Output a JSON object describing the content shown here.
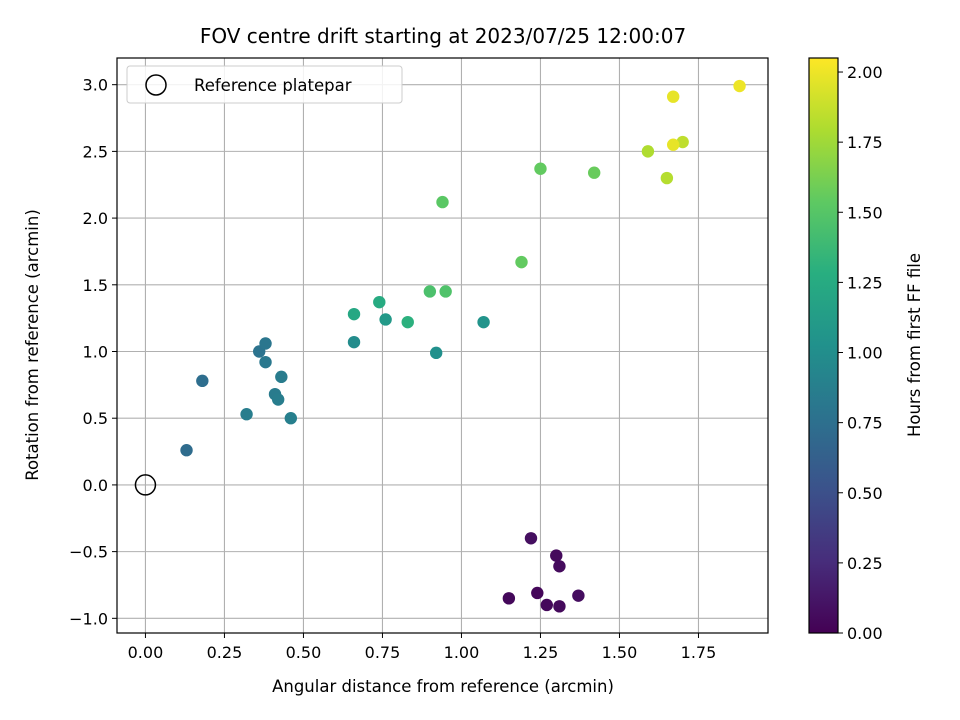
{
  "chart_data": {
    "type": "scatter",
    "title": "FOV centre drift starting at 2023/07/25 12:00:07",
    "xlabel": "Angular distance from reference (arcmin)",
    "ylabel": "Rotation from reference (arcmin)",
    "xlim": [
      -0.09,
      1.97
    ],
    "ylim": [
      -1.11,
      3.2
    ],
    "xticks": [
      0.0,
      0.25,
      0.5,
      0.75,
      1.0,
      1.25,
      1.5,
      1.75
    ],
    "xtick_labels": [
      "0.00",
      "0.25",
      "0.50",
      "0.75",
      "1.00",
      "1.25",
      "1.50",
      "1.75"
    ],
    "yticks": [
      -1.0,
      -0.5,
      0.0,
      0.5,
      1.0,
      1.5,
      2.0,
      2.5,
      3.0
    ],
    "ytick_labels": [
      "−1.0",
      "−0.5",
      "0.0",
      "0.5",
      "1.0",
      "1.5",
      "2.0",
      "2.5",
      "3.0"
    ],
    "grid": true,
    "legend": {
      "placement": "top-left",
      "entries": [
        "Reference platepar"
      ]
    },
    "reference_point": {
      "label": "Reference platepar",
      "x": 0.0,
      "y": 0.0
    },
    "colorbar": {
      "label": "Hours from first FF file",
      "colormap": "viridis",
      "range": [
        0.0,
        2.05
      ],
      "ticks": [
        0.0,
        0.25,
        0.5,
        0.75,
        1.0,
        1.25,
        1.5,
        1.75,
        2.0
      ],
      "tick_labels": [
        "0.00",
        "0.25",
        "0.50",
        "0.75",
        "1.00",
        "1.25",
        "1.50",
        "1.75",
        "2.00"
      ]
    },
    "points": [
      {
        "x": 1.22,
        "y": -0.4,
        "c": 0.08
      },
      {
        "x": 1.3,
        "y": -0.53,
        "c": 0.05
      },
      {
        "x": 1.31,
        "y": -0.61,
        "c": 0.06
      },
      {
        "x": 1.15,
        "y": -0.85,
        "c": 0.04
      },
      {
        "x": 1.24,
        "y": -0.81,
        "c": 0.03
      },
      {
        "x": 1.27,
        "y": -0.9,
        "c": 0.04
      },
      {
        "x": 1.31,
        "y": -0.91,
        "c": 0.05
      },
      {
        "x": 1.37,
        "y": -0.83,
        "c": 0.07
      },
      {
        "x": 0.13,
        "y": 0.26,
        "c": 0.72
      },
      {
        "x": 0.18,
        "y": 0.78,
        "c": 0.74
      },
      {
        "x": 0.32,
        "y": 0.53,
        "c": 0.86
      },
      {
        "x": 0.36,
        "y": 1.0,
        "c": 0.78
      },
      {
        "x": 0.38,
        "y": 1.06,
        "c": 0.8
      },
      {
        "x": 0.38,
        "y": 0.92,
        "c": 0.82
      },
      {
        "x": 0.41,
        "y": 0.68,
        "c": 0.84
      },
      {
        "x": 0.42,
        "y": 0.64,
        "c": 0.86
      },
      {
        "x": 0.43,
        "y": 0.81,
        "c": 0.85
      },
      {
        "x": 0.46,
        "y": 0.5,
        "c": 0.88
      },
      {
        "x": 0.66,
        "y": 1.07,
        "c": 0.98
      },
      {
        "x": 0.92,
        "y": 0.99,
        "c": 1.02
      },
      {
        "x": 1.07,
        "y": 1.22,
        "c": 1.05
      },
      {
        "x": 0.76,
        "y": 1.24,
        "c": 1.1
      },
      {
        "x": 0.66,
        "y": 1.28,
        "c": 1.22
      },
      {
        "x": 0.74,
        "y": 1.37,
        "c": 1.25
      },
      {
        "x": 0.83,
        "y": 1.22,
        "c": 1.3
      },
      {
        "x": 0.9,
        "y": 1.45,
        "c": 1.45
      },
      {
        "x": 0.95,
        "y": 1.45,
        "c": 1.47
      },
      {
        "x": 0.94,
        "y": 2.12,
        "c": 1.52
      },
      {
        "x": 1.19,
        "y": 1.67,
        "c": 1.55
      },
      {
        "x": 1.25,
        "y": 2.37,
        "c": 1.55
      },
      {
        "x": 1.42,
        "y": 2.34,
        "c": 1.57
      },
      {
        "x": 1.59,
        "y": 2.5,
        "c": 1.8
      },
      {
        "x": 1.65,
        "y": 2.3,
        "c": 1.82
      },
      {
        "x": 1.7,
        "y": 2.57,
        "c": 1.85
      },
      {
        "x": 1.67,
        "y": 2.55,
        "c": 1.98
      },
      {
        "x": 1.67,
        "y": 2.91,
        "c": 1.98
      },
      {
        "x": 1.88,
        "y": 2.99,
        "c": 2.0
      }
    ]
  }
}
